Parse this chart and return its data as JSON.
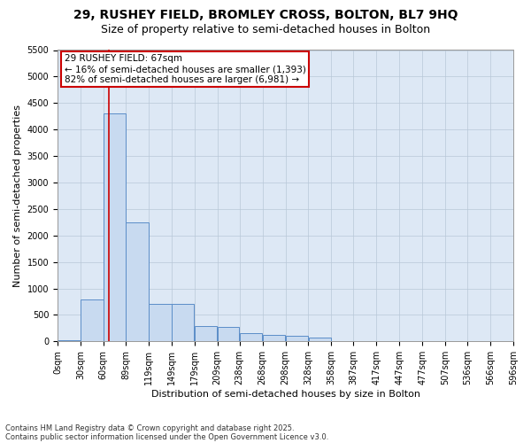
{
  "title_line1": "29, RUSHEY FIELD, BROMLEY CROSS, BOLTON, BL7 9HQ",
  "title_line2": "Size of property relative to semi-detached houses in Bolton",
  "xlabel": "Distribution of semi-detached houses by size in Bolton",
  "ylabel": "Number of semi-detached properties",
  "footnote1": "Contains HM Land Registry data © Crown copyright and database right 2025.",
  "footnote2": "Contains public sector information licensed under the Open Government Licence v3.0.",
  "annotation_title": "29 RUSHEY FIELD: 67sqm",
  "annotation_line1": "← 16% of semi-detached houses are smaller (1,393)",
  "annotation_line2": "82% of semi-detached houses are larger (6,981) →",
  "property_size": 67,
  "bar_left_edges": [
    0,
    30,
    60,
    89,
    119,
    149,
    179,
    209,
    238,
    268,
    298,
    328,
    358,
    387,
    417,
    447,
    477,
    507,
    536,
    566
  ],
  "bar_widths": [
    30,
    30,
    29,
    30,
    30,
    30,
    30,
    29,
    30,
    30,
    30,
    30,
    29,
    30,
    30,
    30,
    30,
    29,
    30,
    30
  ],
  "bar_heights": [
    20,
    800,
    4300,
    2250,
    700,
    700,
    290,
    270,
    160,
    130,
    100,
    80,
    0,
    0,
    0,
    0,
    0,
    0,
    0,
    0
  ],
  "bar_color": "#c8daf0",
  "bar_edge_color": "#5b8dc8",
  "vline_color": "#cc0000",
  "vline_x": 67,
  "box_edge_color": "#cc0000",
  "ylim": [
    0,
    5500
  ],
  "yticks": [
    0,
    500,
    1000,
    1500,
    2000,
    2500,
    3000,
    3500,
    4000,
    4500,
    5000,
    5500
  ],
  "tick_labels": [
    "0sqm",
    "30sqm",
    "60sqm",
    "89sqm",
    "119sqm",
    "149sqm",
    "179sqm",
    "209sqm",
    "238sqm",
    "268sqm",
    "298sqm",
    "328sqm",
    "358sqm",
    "387sqm",
    "417sqm",
    "447sqm",
    "477sqm",
    "507sqm",
    "536sqm",
    "566sqm",
    "596sqm"
  ],
  "background_color": "#ffffff",
  "plot_bg_color": "#dde8f5",
  "grid_color": "#b8c8d8",
  "title_fontsize": 10,
  "subtitle_fontsize": 9,
  "axis_label_fontsize": 8,
  "tick_fontsize": 7,
  "annotation_fontsize": 7.5,
  "footnote_fontsize": 6
}
